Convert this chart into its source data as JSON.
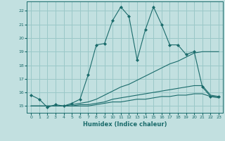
{
  "xlabel": "Humidex (Indice chaleur)",
  "xlim": [
    -0.5,
    23.5
  ],
  "ylim": [
    14.5,
    22.7
  ],
  "yticks": [
    15,
    16,
    17,
    18,
    19,
    20,
    21,
    22
  ],
  "xticks": [
    0,
    1,
    2,
    3,
    4,
    5,
    6,
    7,
    8,
    9,
    10,
    11,
    12,
    13,
    14,
    15,
    16,
    17,
    18,
    19,
    20,
    21,
    22,
    23
  ],
  "bg_color": "#c2e0e0",
  "grid_color": "#9ac8c8",
  "line_color": "#1a6b6b",
  "lines": [
    {
      "x": [
        0,
        1,
        2,
        3,
        4,
        5,
        6,
        7,
        8,
        9,
        10,
        11,
        12,
        13,
        14,
        15,
        16,
        17,
        18,
        19,
        20,
        21,
        22,
        23
      ],
      "y": [
        15.8,
        15.5,
        14.9,
        15.1,
        15.0,
        15.2,
        15.5,
        17.3,
        19.5,
        19.6,
        21.3,
        22.3,
        21.6,
        18.4,
        20.6,
        22.3,
        21.0,
        19.5,
        19.5,
        18.8,
        19.0,
        16.4,
        15.7,
        15.7
      ],
      "marker": true
    },
    {
      "x": [
        0,
        1,
        2,
        3,
        4,
        5,
        6,
        7,
        8,
        9,
        10,
        11,
        12,
        13,
        14,
        15,
        16,
        17,
        18,
        19,
        20,
        21,
        22,
        23
      ],
      "y": [
        15.0,
        15.0,
        15.0,
        15.0,
        15.0,
        15.1,
        15.2,
        15.3,
        15.5,
        15.8,
        16.1,
        16.4,
        16.6,
        16.9,
        17.2,
        17.5,
        17.8,
        18.1,
        18.3,
        18.6,
        18.9,
        19.0,
        19.0,
        19.0
      ],
      "marker": false
    },
    {
      "x": [
        0,
        1,
        2,
        3,
        4,
        5,
        6,
        7,
        8,
        9,
        10,
        11,
        12,
        13,
        14,
        15,
        16,
        17,
        18,
        19,
        20,
        21,
        22,
        23
      ],
      "y": [
        15.0,
        15.0,
        15.0,
        15.0,
        15.0,
        15.0,
        15.1,
        15.1,
        15.2,
        15.3,
        15.5,
        15.6,
        15.7,
        15.8,
        15.9,
        16.0,
        16.1,
        16.2,
        16.3,
        16.4,
        16.5,
        16.5,
        15.8,
        15.7
      ],
      "marker": false
    },
    {
      "x": [
        0,
        1,
        2,
        3,
        4,
        5,
        6,
        7,
        8,
        9,
        10,
        11,
        12,
        13,
        14,
        15,
        16,
        17,
        18,
        19,
        20,
        21,
        22,
        23
      ],
      "y": [
        15.0,
        15.0,
        15.0,
        15.0,
        15.0,
        15.0,
        15.0,
        15.0,
        15.1,
        15.2,
        15.3,
        15.3,
        15.4,
        15.5,
        15.5,
        15.6,
        15.7,
        15.7,
        15.8,
        15.8,
        15.9,
        15.9,
        15.7,
        15.6
      ],
      "marker": false
    }
  ]
}
